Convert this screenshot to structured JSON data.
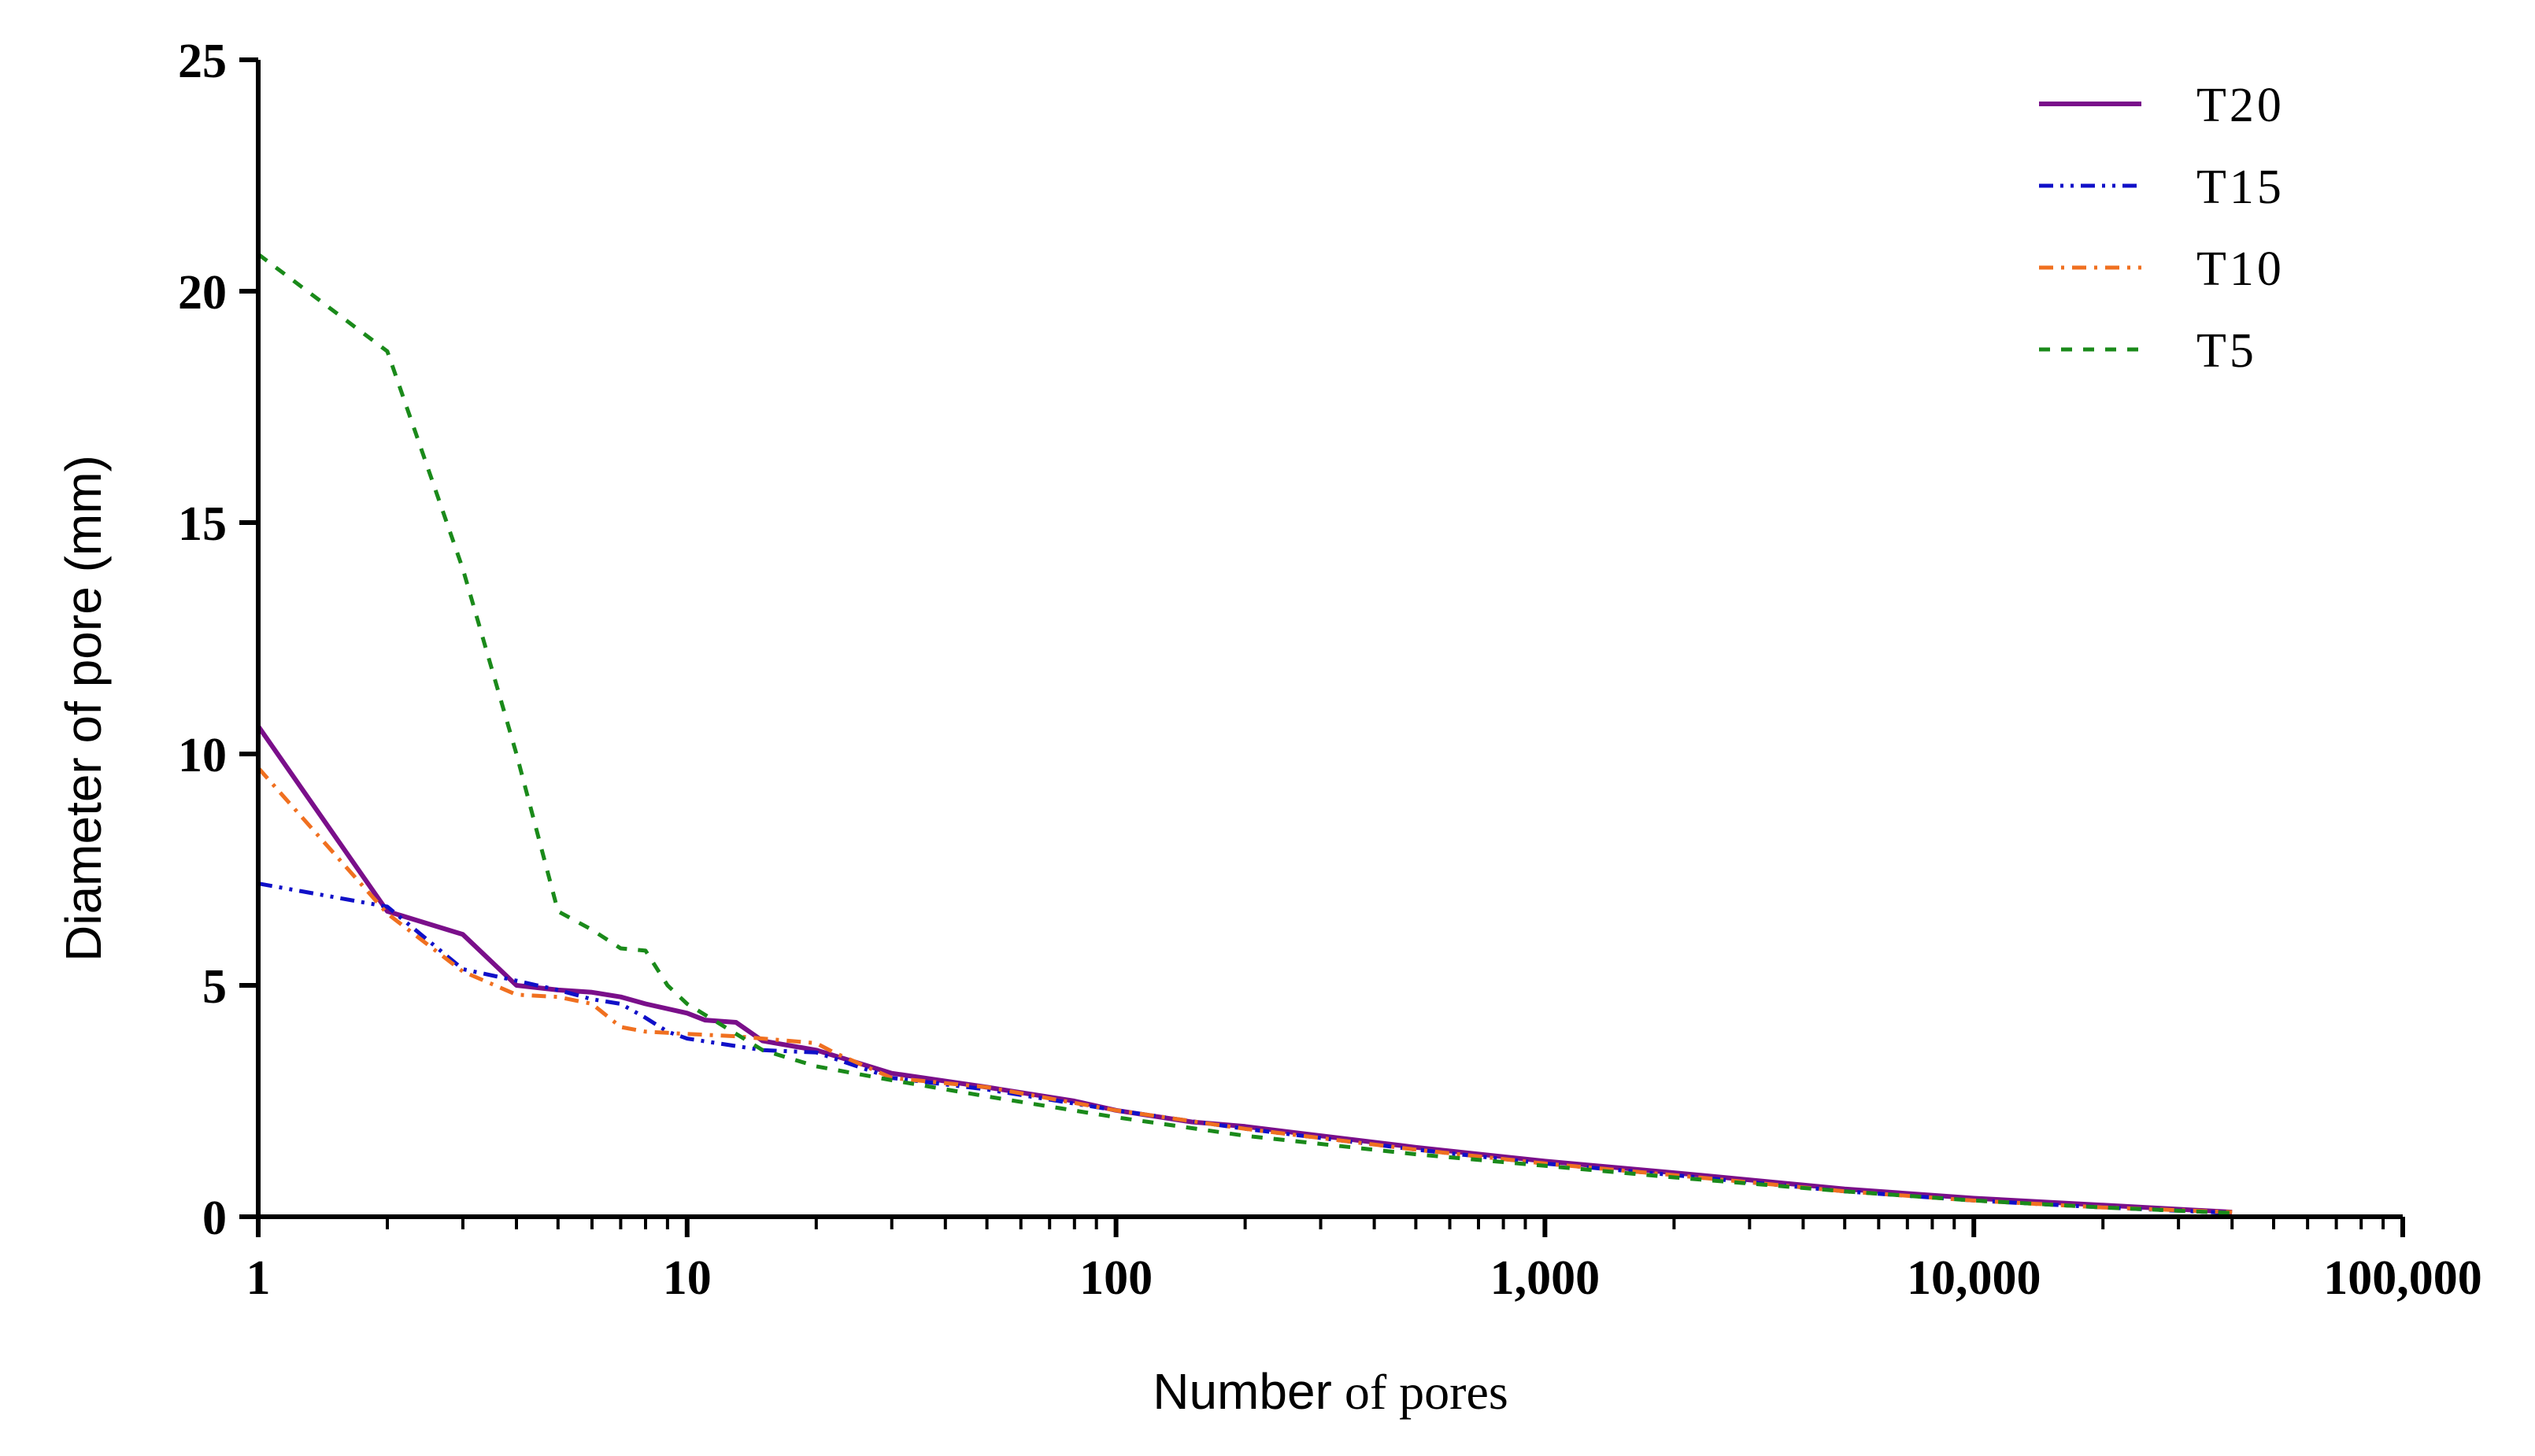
{
  "chart_data": {
    "type": "line",
    "x_scale": "log",
    "xlim": [
      1,
      100000
    ],
    "ylim": [
      0,
      25
    ],
    "x_ticks": [
      1,
      10,
      100,
      1000,
      10000,
      100000
    ],
    "x_tick_labels": [
      "1",
      "10",
      "100",
      "1,000",
      "10,000",
      "100,000"
    ],
    "y_ticks": [
      0,
      5,
      10,
      15,
      20,
      25
    ],
    "y_tick_labels": [
      "0",
      "5",
      "10",
      "15",
      "20",
      "25"
    ],
    "xlabel_parts": [
      "Number",
      " of pores"
    ],
    "ylabel": "Diameter of pore (mm)",
    "legend_position": "top-right",
    "grid": false,
    "series": [
      {
        "name": "T20",
        "color": "#7a0f8a",
        "dash": "solid",
        "x": [
          1,
          2,
          3,
          4,
          5,
          6,
          7,
          8,
          10,
          11,
          13,
          15,
          20,
          30,
          50,
          80,
          100,
          150,
          200,
          300,
          500,
          1000,
          2000,
          5000,
          10000,
          20000,
          40000
        ],
        "y": [
          10.6,
          6.6,
          6.1,
          5.0,
          4.9,
          4.85,
          4.75,
          4.6,
          4.4,
          4.25,
          4.2,
          3.8,
          3.6,
          3.1,
          2.8,
          2.5,
          2.3,
          2.05,
          1.95,
          1.75,
          1.5,
          1.2,
          0.95,
          0.6,
          0.4,
          0.25,
          0.1
        ]
      },
      {
        "name": "T15",
        "color": "#1010c8",
        "dash": "dashdotdot",
        "x": [
          1,
          2,
          3,
          4,
          5,
          6,
          7,
          8,
          9,
          10,
          15,
          20,
          30,
          50,
          100,
          200,
          500,
          1000,
          2000,
          5000,
          10000,
          20000,
          40000
        ],
        "y": [
          7.2,
          6.7,
          5.35,
          5.1,
          4.9,
          4.7,
          4.6,
          4.3,
          4.0,
          3.85,
          3.6,
          3.55,
          3.0,
          2.75,
          2.3,
          1.9,
          1.45,
          1.15,
          0.9,
          0.55,
          0.35,
          0.2,
          0.08
        ]
      },
      {
        "name": "T10",
        "color": "#f07020",
        "dash": "dashdot",
        "x": [
          1,
          2,
          3,
          4,
          5,
          6,
          7,
          8,
          10,
          13,
          15,
          20,
          22,
          30,
          50,
          100,
          200,
          500,
          1000,
          2000,
          5000,
          10000,
          20000,
          40000
        ],
        "y": [
          9.7,
          6.55,
          5.3,
          4.8,
          4.75,
          4.6,
          4.1,
          4.0,
          3.95,
          3.9,
          3.85,
          3.75,
          3.55,
          3.0,
          2.8,
          2.3,
          1.9,
          1.45,
          1.15,
          0.9,
          0.55,
          0.35,
          0.2,
          0.1
        ]
      },
      {
        "name": "T5",
        "color": "#1a8a1a",
        "dash": "dashed",
        "x": [
          1,
          2,
          3,
          4,
          5,
          6,
          7,
          8,
          9,
          10,
          15,
          20,
          30,
          50,
          100,
          200,
          500,
          1000,
          2000,
          5000,
          10000,
          20000,
          40000
        ],
        "y": [
          20.8,
          18.7,
          14.0,
          10.0,
          6.6,
          6.2,
          5.8,
          5.75,
          5.0,
          4.6,
          3.6,
          3.25,
          2.95,
          2.6,
          2.15,
          1.75,
          1.35,
          1.1,
          0.85,
          0.55,
          0.35,
          0.2,
          0.08
        ]
      }
    ]
  }
}
